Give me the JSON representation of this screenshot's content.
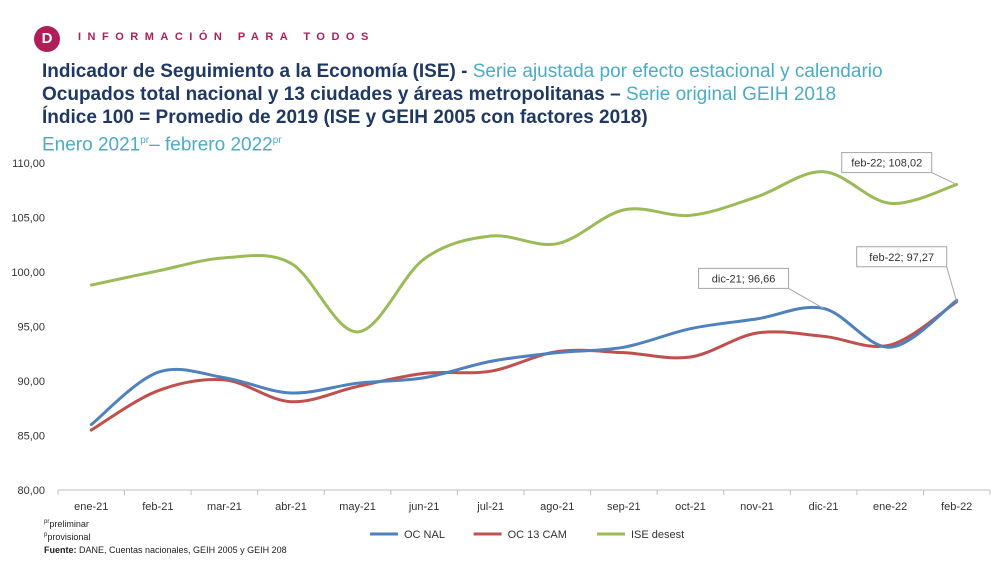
{
  "header": {
    "logo_letter": "D",
    "tagline": "INFORMACIÓN PARA TODOS",
    "brand_color": "#b01e57"
  },
  "titles": {
    "line1_bold": "Indicador de Seguimiento a la Economía (ISE) -",
    "line1_rest": "Serie ajustada por efecto estacional y calendario",
    "line2_bold": "Ocupados total nacional y 13 ciudades y áreas metropolitanas –",
    "line2_rest": "Serie original GEIH 2018",
    "line3_bold": "Índice 100 = Promedio de 2019 (ISE y GEIH 2005 con factores 2018)",
    "line4_a": "Enero 2021",
    "line4_sup_a": "pr",
    "line4_b": "– febrero 2022",
    "line4_sup_b": "pr"
  },
  "chart_data": {
    "type": "line",
    "categories": [
      "ene-21",
      "feb-21",
      "mar-21",
      "abr-21",
      "may-21",
      "jun-21",
      "jul-21",
      "ago-21",
      "sep-21",
      "oct-21",
      "nov-21",
      "dic-21",
      "ene-22",
      "feb-22"
    ],
    "ylim": [
      80,
      110
    ],
    "yticks": [
      80,
      85,
      90,
      95,
      100,
      105,
      110
    ],
    "ytick_labels": [
      "80,00",
      "85,00",
      "90,00",
      "95,00",
      "100,00",
      "105,00",
      "110,00"
    ],
    "series": [
      {
        "name": "OC NAL",
        "color": "#4f81bd",
        "values": [
          86.0,
          90.8,
          90.3,
          88.9,
          89.8,
          90.3,
          91.8,
          92.6,
          93.1,
          94.8,
          95.7,
          96.66,
          93.1,
          97.4
        ]
      },
      {
        "name": "OC 13 CAM",
        "color": "#c0504d",
        "values": [
          85.5,
          89.1,
          90.1,
          88.1,
          89.5,
          90.7,
          90.9,
          92.7,
          92.6,
          92.2,
          94.4,
          94.1,
          93.3,
          97.27
        ]
      },
      {
        "name": "ISE desest",
        "color": "#9bbb59",
        "values": [
          98.8,
          100.1,
          101.3,
          100.8,
          94.5,
          101.2,
          103.3,
          102.6,
          105.7,
          105.2,
          106.9,
          109.2,
          106.3,
          108.02
        ]
      }
    ],
    "annotations": [
      {
        "text": "feb-22;  108,02",
        "series": 2,
        "index": 13
      },
      {
        "text": "dic-21;  96,66",
        "series": 0,
        "index": 11
      },
      {
        "text": "feb-22;  97,27",
        "series": 1,
        "index": 13
      }
    ],
    "legend_position": "bottom"
  },
  "footer": {
    "note1_sup": "pr",
    "note1": "preliminar",
    "note2_sup": "p",
    "note2": "provisional",
    "source_label": "Fuente:",
    "source_text": " DANE, Cuentas nacionales, GEIH 2005 y GEIH 208"
  }
}
